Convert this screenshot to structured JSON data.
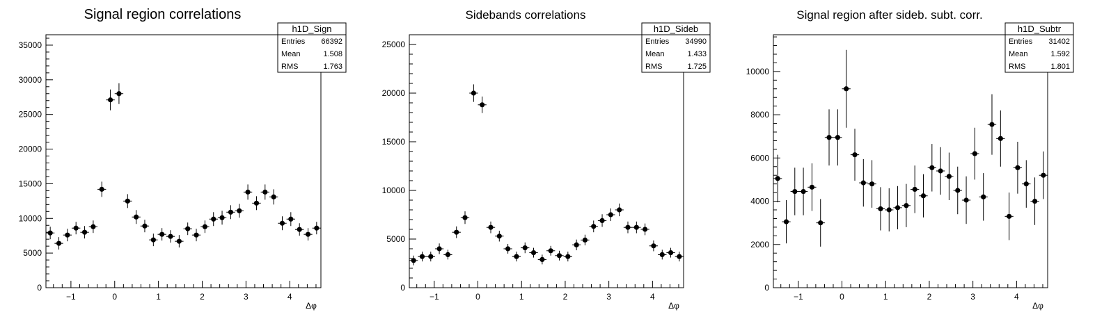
{
  "chart_data": [
    {
      "type": "scatter",
      "title": "Signal region correlations",
      "xlabel": "Δφ",
      "ylabel": "",
      "xlim": [
        -1.571,
        4.712
      ],
      "ylim": [
        0,
        36500
      ],
      "xticks": [
        -1,
        0,
        1,
        2,
        3,
        4
      ],
      "yticks": [
        0,
        5000,
        10000,
        15000,
        20000,
        25000,
        30000,
        35000
      ],
      "stats": {
        "name": "h1D_Sign",
        "rows": [
          {
            "label": "Entries",
            "value": "66392"
          },
          {
            "label": "Mean",
            "value": "1.508"
          },
          {
            "label": "RMS",
            "value": "1.763"
          }
        ]
      },
      "x": [
        -1.473,
        -1.276,
        -1.08,
        -0.884,
        -0.687,
        -0.491,
        -0.295,
        -0.098,
        0.098,
        0.295,
        0.491,
        0.687,
        0.884,
        1.08,
        1.276,
        1.473,
        1.669,
        1.865,
        2.062,
        2.258,
        2.454,
        2.651,
        2.847,
        3.043,
        3.24,
        3.436,
        3.633,
        3.829,
        4.025,
        4.222,
        4.418,
        4.614
      ],
      "y": [
        7900,
        6400,
        7600,
        8600,
        8000,
        8800,
        14200,
        27100,
        28000,
        12500,
        10200,
        8900,
        6900,
        7700,
        7400,
        6700,
        8500,
        7600,
        8800,
        9900,
        10100,
        10900,
        11100,
        13800,
        12200,
        13800,
        13100,
        9300,
        9900,
        8400,
        7700,
        8600
      ],
      "yerr": [
        900,
        900,
        900,
        900,
        900,
        900,
        1100,
        1500,
        1500,
        1000,
        1000,
        900,
        900,
        900,
        900,
        900,
        900,
        900,
        900,
        1000,
        1000,
        1000,
        1000,
        1100,
        1000,
        1100,
        1100,
        1000,
        1000,
        900,
        900,
        900
      ]
    },
    {
      "type": "scatter",
      "title": "Sidebands correlations",
      "xlabel": "Δφ",
      "ylabel": "",
      "xlim": [
        -1.571,
        4.712
      ],
      "ylim": [
        0,
        26000
      ],
      "xticks": [
        -1,
        0,
        1,
        2,
        3,
        4
      ],
      "yticks": [
        0,
        5000,
        10000,
        15000,
        20000,
        25000
      ],
      "stats": {
        "name": "h1D_Sideb",
        "rows": [
          {
            "label": "Entries",
            "value": "34990"
          },
          {
            "label": "Mean",
            "value": "1.433"
          },
          {
            "label": "RMS",
            "value": "1.725"
          }
        ]
      },
      "x": [
        -1.473,
        -1.276,
        -1.08,
        -0.884,
        -0.687,
        -0.491,
        -0.295,
        -0.098,
        0.098,
        0.295,
        0.491,
        0.687,
        0.884,
        1.08,
        1.276,
        1.473,
        1.669,
        1.865,
        2.062,
        2.258,
        2.454,
        2.651,
        2.847,
        3.043,
        3.24,
        3.436,
        3.633,
        3.829,
        4.025,
        4.222,
        4.418,
        4.614
      ],
      "y": [
        2800,
        3200,
        3200,
        4000,
        3400,
        5700,
        7200,
        20000,
        18800,
        6200,
        5300,
        4000,
        3200,
        4100,
        3600,
        2900,
        3800,
        3300,
        3200,
        4400,
        4900,
        6300,
        6900,
        7500,
        8000,
        6200,
        6200,
        6000,
        4300,
        3400,
        3600,
        3200
      ],
      "yerr": [
        500,
        500,
        500,
        550,
        500,
        600,
        650,
        900,
        850,
        600,
        550,
        500,
        500,
        550,
        500,
        500,
        500,
        500,
        500,
        550,
        550,
        600,
        650,
        650,
        650,
        600,
        600,
        600,
        550,
        500,
        500,
        500
      ]
    },
    {
      "type": "scatter",
      "title": "Signal region after sideb. subt. corr.",
      "xlabel": "Δφ",
      "ylabel": "",
      "xlim": [
        -1.571,
        4.712
      ],
      "ylim": [
        0,
        11700
      ],
      "xticks": [
        -1,
        0,
        1,
        2,
        3,
        4
      ],
      "yticks": [
        0,
        2000,
        4000,
        6000,
        8000,
        10000
      ],
      "stats": {
        "name": "h1D_Subtr",
        "rows": [
          {
            "label": "Entries",
            "value": "31402"
          },
          {
            "label": "Mean",
            "value": "1.592"
          },
          {
            "label": "RMS",
            "value": "1.801"
          }
        ]
      },
      "x": [
        -1.473,
        -1.276,
        -1.08,
        -0.884,
        -0.687,
        -0.491,
        -0.295,
        -0.098,
        0.098,
        0.295,
        0.491,
        0.687,
        0.884,
        1.08,
        1.276,
        1.473,
        1.669,
        1.865,
        2.062,
        2.258,
        2.454,
        2.651,
        2.847,
        3.043,
        3.24,
        3.436,
        3.633,
        3.829,
        4.025,
        4.222,
        4.418,
        4.614
      ],
      "y": [
        5050,
        3050,
        4450,
        4450,
        4650,
        3000,
        6950,
        6950,
        9200,
        6150,
        4850,
        4800,
        3650,
        3600,
        3700,
        3800,
        4550,
        4250,
        5550,
        5400,
        5150,
        4500,
        4050,
        6200,
        4200,
        7550,
        6900,
        3300,
        5550,
        4800,
        4000,
        5200
      ],
      "yerr": [
        1100,
        1000,
        1100,
        1100,
        1100,
        1100,
        1300,
        1300,
        1800,
        1200,
        1100,
        1100,
        1000,
        1000,
        1000,
        1000,
        1100,
        1000,
        1100,
        1100,
        1100,
        1100,
        1100,
        1200,
        1100,
        1400,
        1300,
        1100,
        1200,
        1100,
        1100,
        1100
      ]
    }
  ]
}
